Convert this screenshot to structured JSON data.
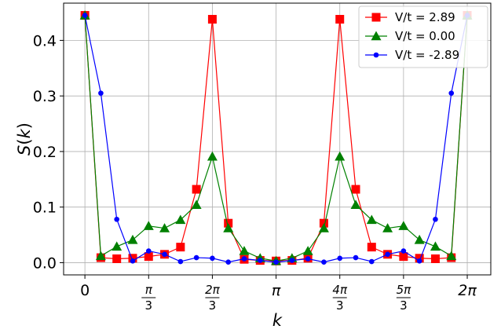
{
  "chart_data": {
    "type": "line",
    "xlabel": "k",
    "ylabel": "S(k)",
    "xlim": [
      -0.35,
      6.67
    ],
    "ylim": [
      -0.022,
      0.467
    ],
    "grid": true,
    "legend_position": "top-right",
    "x_ticks": [
      {
        "value": 0,
        "num": "0",
        "den": ""
      },
      {
        "value": 1.0472,
        "num": "π",
        "den": "3"
      },
      {
        "value": 2.0944,
        "num": "2π",
        "den": "3"
      },
      {
        "value": 3.1416,
        "num": "π",
        "den": ""
      },
      {
        "value": 4.1888,
        "num": "4π",
        "den": "3"
      },
      {
        "value": 5.236,
        "num": "5π",
        "den": "3"
      },
      {
        "value": 6.2832,
        "num": "2π",
        "den": ""
      }
    ],
    "y_ticks": [
      {
        "value": 0.0,
        "label": "0.0"
      },
      {
        "value": 0.1,
        "label": "0.1"
      },
      {
        "value": 0.2,
        "label": "0.2"
      },
      {
        "value": 0.3,
        "label": "0.3"
      },
      {
        "value": 0.4,
        "label": "0.4"
      }
    ],
    "x": [
      0.0,
      0.2618,
      0.5236,
      0.7854,
      1.0472,
      1.309,
      1.5708,
      1.8326,
      2.0944,
      2.3562,
      2.618,
      2.8798,
      3.1416,
      3.4034,
      3.6652,
      3.927,
      4.1888,
      4.4506,
      4.7124,
      4.9742,
      5.236,
      5.4978,
      5.7596,
      6.0214,
      6.2832
    ],
    "series": [
      {
        "name": "V/t = 2.89",
        "color": "#ff0000",
        "marker": "square",
        "values": [
          0.445,
          0.009,
          0.007,
          0.008,
          0.011,
          0.015,
          0.028,
          0.132,
          0.438,
          0.071,
          0.006,
          0.004,
          0.003,
          0.004,
          0.008,
          0.071,
          0.438,
          0.132,
          0.028,
          0.015,
          0.011,
          0.008,
          0.007,
          0.009,
          0.445
        ]
      },
      {
        "name": "V/t = 0.00",
        "color": "#008000",
        "marker": "triangle",
        "values": [
          0.445,
          0.012,
          0.029,
          0.041,
          0.066,
          0.062,
          0.077,
          0.104,
          0.191,
          0.062,
          0.021,
          0.008,
          0.003,
          0.008,
          0.021,
          0.062,
          0.191,
          0.104,
          0.077,
          0.062,
          0.066,
          0.041,
          0.029,
          0.012,
          0.445
        ]
      },
      {
        "name": "V/t = -2.89",
        "color": "#0000ff",
        "marker": "circle",
        "values": [
          0.445,
          0.305,
          0.078,
          0.003,
          0.021,
          0.015,
          0.002,
          0.009,
          0.008,
          0.001,
          0.007,
          0.004,
          0.001,
          0.004,
          0.007,
          0.001,
          0.008,
          0.009,
          0.002,
          0.015,
          0.021,
          0.003,
          0.078,
          0.305,
          0.445
        ]
      }
    ]
  }
}
